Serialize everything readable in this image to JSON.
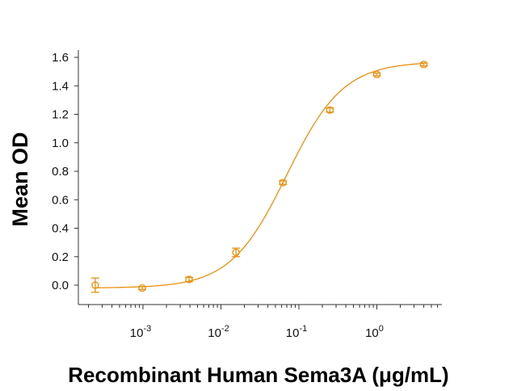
{
  "chart_data": {
    "type": "scatter",
    "title": "",
    "xlabel": "Recombinant Human Sema3A (μg/mL)",
    "ylabel": "Mean OD",
    "x_scale": "log",
    "xlim": [
      0.00015,
      7
    ],
    "ylim": [
      -0.1,
      1.65
    ],
    "x_ticks": [
      {
        "value": 0.001,
        "base": "10",
        "exp": "-3"
      },
      {
        "value": 0.01,
        "base": "10",
        "exp": "-2"
      },
      {
        "value": 0.1,
        "base": "10",
        "exp": "-1"
      },
      {
        "value": 1,
        "base": "10",
        "exp": "0"
      }
    ],
    "y_ticks": [
      "0.0",
      "0.2",
      "0.4",
      "0.6",
      "0.8",
      "1.0",
      "1.2",
      "1.4",
      "1.6"
    ],
    "grid": false,
    "color": "#E8900F",
    "series": [
      {
        "x": [
          0.000244,
          0.000977,
          0.0039,
          0.0156,
          0.0625,
          0.25,
          1,
          4
        ],
        "y": [
          0.0,
          -0.02,
          0.04,
          0.23,
          0.72,
          1.23,
          1.48,
          1.55
        ],
        "error": [
          0.05,
          0.01,
          0.015,
          0.03,
          0.012,
          0.015,
          0.01,
          0.01
        ]
      }
    ],
    "fit": "4-parameter logistic curve"
  }
}
